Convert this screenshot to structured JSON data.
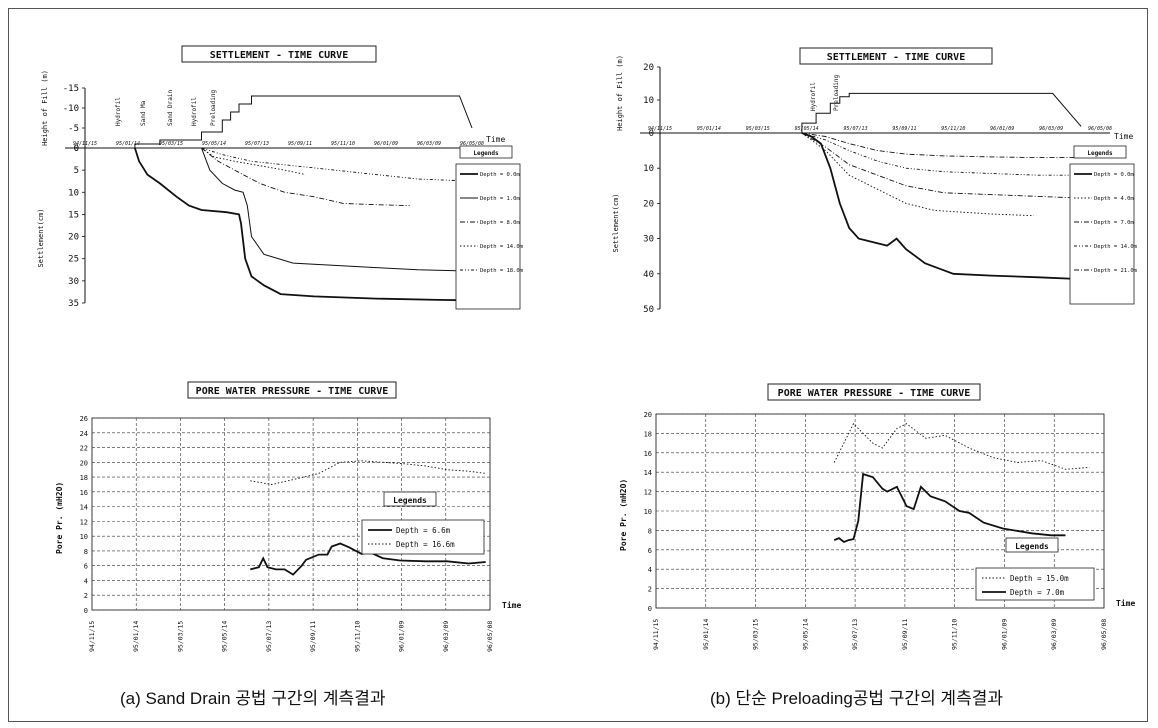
{
  "captions": {
    "a": "(a) Sand Drain 공법 구간의 계측결과",
    "b": "(b) 단순 Preloading공법 구간의 계측결과"
  },
  "chart_data": [
    {
      "id": "a-settlement",
      "type": "line",
      "title": "SETTLEMENT - TIME CURVE",
      "ylabel": "Settlement(cm)",
      "ylabel_top": "Height of Fill (m)",
      "xlabel": "Time",
      "ylim": [
        0,
        35
      ],
      "ylim_top": [
        0,
        15
      ],
      "yticks": [
        "0",
        "5",
        "10",
        "15",
        "20",
        "25",
        "30",
        "35"
      ],
      "yticks_top": [
        "-15",
        "-10",
        "-5",
        "0"
      ],
      "xticks": [
        "94/11/15",
        "95/01/14",
        "95/03/15",
        "95/05/14",
        "95/07/13",
        "95/09/11",
        "95/11/10",
        "96/01/09",
        "96/03/09",
        "96/05/08"
      ],
      "fill_events": [
        "Hydrofil",
        "Sand Ma",
        "Sand Drain",
        "Hydrofil",
        "Preloading"
      ],
      "fill_height": {
        "x": [
          1.2,
          1.2,
          1.8,
          1.8,
          2.8,
          2.8,
          3.3,
          3.3,
          3.5,
          3.5,
          3.7,
          3.7,
          4.0,
          4.0,
          9.0,
          9.3
        ],
        "values": [
          0,
          1,
          1,
          2,
          2,
          4,
          4,
          7,
          7,
          9,
          9,
          11,
          11,
          13,
          13,
          5
        ]
      },
      "legend_title": "Legends",
      "series": [
        {
          "name": "Depth = 0.0m",
          "style": "solid2",
          "x": [
            1.2,
            1.3,
            1.5,
            1.8,
            2.2,
            2.5,
            2.8,
            3.4,
            3.7,
            3.75,
            3.85,
            4.0,
            4.3,
            4.7,
            5.5,
            7.0,
            8.5,
            9.3
          ],
          "values": [
            0,
            3,
            6,
            8,
            11,
            13,
            14,
            14.5,
            15,
            17,
            25,
            29,
            31,
            33,
            33.5,
            34,
            34.3,
            34.4
          ]
        },
        {
          "name": "Depth = 1.0m",
          "style": "solid",
          "x": [
            2.8,
            3.0,
            3.3,
            3.6,
            3.8,
            3.9,
            4.0,
            4.3,
            5.0,
            6.0,
            7.0,
            8.0,
            9.3
          ],
          "values": [
            0,
            5,
            8,
            9.5,
            10,
            13,
            20,
            24,
            26,
            26.5,
            27,
            27.5,
            27.8
          ]
        },
        {
          "name": "Depth = 8.0m",
          "style": "dashdot",
          "x": [
            2.8,
            3.2,
            3.8,
            4.2,
            4.8,
            5.5,
            6.2,
            7.0,
            7.8
          ],
          "values": [
            0,
            3,
            6,
            8,
            10,
            11,
            12.5,
            12.8,
            13
          ]
        },
        {
          "name": "Depth = 14.0m",
          "style": "dotted",
          "x": [
            2.8,
            3.1,
            3.6,
            4.2,
            4.8,
            5.3
          ],
          "values": [
            0,
            2,
            3,
            4,
            5,
            6
          ]
        },
        {
          "name": "Depth = 18.0m",
          "style": "dashdot2",
          "x": [
            2.8,
            3.3,
            4.0,
            5.0,
            6.0,
            7.0,
            8.0,
            9.3
          ],
          "values": [
            0,
            1.5,
            3,
            4,
            5,
            6,
            7,
            7.5
          ]
        }
      ]
    },
    {
      "id": "b-settlement",
      "type": "line",
      "title": "SETTLEMENT - TIME CURVE",
      "ylabel": "Settlement(cm)",
      "ylabel_top": "Height of Fill (m)",
      "xlabel": "Time",
      "ylim": [
        0,
        50
      ],
      "ylim_top": [
        0,
        20
      ],
      "yticks": [
        "0",
        "10",
        "20",
        "30",
        "40",
        "50"
      ],
      "yticks_top": [
        "10",
        "20"
      ],
      "xticks": [
        "94/11/15",
        "95/01/14",
        "95/03/15",
        "95/05/14",
        "95/07/13",
        "95/09/11",
        "95/11/10",
        "96/01/09",
        "96/03/09",
        "96/05/08"
      ],
      "fill_events": [
        "Hydrofil",
        "Preloading"
      ],
      "fill_height": {
        "x": [
          3.0,
          3.0,
          3.3,
          3.3,
          3.6,
          3.6,
          3.8,
          3.8,
          4.0,
          4.0,
          8.3,
          8.9
        ],
        "values": [
          0,
          3,
          3,
          6,
          6,
          9,
          9,
          11,
          11,
          12,
          12,
          2
        ]
      },
      "legend_title": "Legends",
      "series": [
        {
          "name": "Depth = 0.0m",
          "style": "solid2",
          "x": [
            3.0,
            3.2,
            3.4,
            3.6,
            3.8,
            4.0,
            4.2,
            4.5,
            4.8,
            5.0,
            5.2,
            5.4,
            5.6,
            5.8,
            6.0,
            6.2,
            7.0,
            8.0,
            8.9
          ],
          "values": [
            0,
            1,
            3,
            10,
            20,
            27,
            30,
            31,
            32,
            30,
            33,
            35,
            37,
            38,
            39,
            40,
            40.5,
            41,
            41.5
          ]
        },
        {
          "name": "Depth = 4.0m",
          "style": "dotted",
          "x": [
            3.0,
            3.5,
            4.0,
            4.6,
            5.2,
            5.8,
            7.0,
            7.9
          ],
          "values": [
            0,
            5,
            12,
            16,
            20,
            22,
            23,
            23.5
          ]
        },
        {
          "name": "Depth = 7.0m",
          "style": "dashdot",
          "x": [
            3.0,
            3.5,
            4.0,
            4.6,
            5.2,
            6.0,
            7.0,
            8.0,
            8.9
          ],
          "values": [
            0,
            4,
            9,
            12,
            15,
            17,
            17.5,
            18,
            18.5
          ]
        },
        {
          "name": "Depth = 14.0m",
          "style": "dashdot2",
          "x": [
            3.0,
            3.5,
            4.0,
            4.6,
            5.2,
            6.0,
            7.0,
            8.0,
            8.9
          ],
          "values": [
            0,
            2,
            5,
            8,
            10,
            11,
            11.5,
            12,
            12
          ]
        },
        {
          "name": "Depth = 21.0m",
          "style": "dashdot",
          "x": [
            3.0,
            3.5,
            4.0,
            4.6,
            5.2,
            6.0,
            7.0,
            8.0,
            8.9
          ],
          "values": [
            0,
            1,
            3,
            5,
            6,
            6.5,
            6.8,
            7,
            7
          ]
        }
      ]
    },
    {
      "id": "a-pore",
      "type": "line",
      "title": "PORE WATER PRESSURE - TIME CURVE",
      "ylabel": "Pore Pr. (mH2O)",
      "xlabel": "Time",
      "ylim": [
        0,
        26
      ],
      "yticks": [
        "0",
        "2",
        "4",
        "6",
        "8",
        "10",
        "12",
        "14",
        "16",
        "18",
        "20",
        "22",
        "24",
        "26"
      ],
      "xticks": [
        "94/11/15",
        "95/01/14",
        "95/03/15",
        "95/05/14",
        "95/07/13",
        "95/09/11",
        "95/11/10",
        "96/01/09",
        "96/03/09",
        "96/05/08"
      ],
      "legend_title": "Legends",
      "series": [
        {
          "name": "Depth = 6.6m",
          "style": "solid2",
          "x": [
            3.7,
            3.9,
            4.0,
            4.1,
            4.3,
            4.5,
            4.7,
            4.9,
            5.0,
            5.3,
            5.5,
            5.6,
            5.8,
            6.0,
            6.3,
            6.5,
            6.8,
            7.2,
            7.8,
            8.3,
            8.8,
            9.2
          ],
          "values": [
            5.5,
            5.8,
            7,
            5.8,
            5.5,
            5.5,
            4.8,
            6,
            6.8,
            7.5,
            7.5,
            8.6,
            9,
            8.5,
            7.6,
            7.8,
            7,
            6.7,
            6.6,
            6.6,
            6.3,
            6.5
          ]
        },
        {
          "name": "Depth = 16.6m",
          "style": "dotted",
          "x": [
            3.7,
            4.2,
            4.8,
            5.3,
            5.8,
            6.3,
            6.8,
            7.3,
            7.8,
            8.3,
            8.8,
            9.2
          ],
          "values": [
            17.5,
            17,
            17.8,
            18.5,
            20,
            20.2,
            20,
            19.8,
            19.5,
            19,
            18.8,
            18.5
          ]
        }
      ]
    },
    {
      "id": "b-pore",
      "type": "line",
      "title": "PORE WATER PRESSURE - TIME CURVE",
      "ylabel": "Pore Pr. (mH2O)",
      "xlabel": "Time",
      "ylim": [
        0,
        20
      ],
      "yticks": [
        "0",
        "2",
        "4",
        "6",
        "8",
        "10",
        "12",
        "14",
        "16",
        "18",
        "20"
      ],
      "xticks": [
        "94/11/15",
        "95/01/14",
        "95/03/15",
        "95/05/14",
        "95/07/13",
        "95/09/11",
        "95/11/10",
        "96/01/09",
        "96/03/09",
        "96/05/08"
      ],
      "legend_title": "Legends",
      "series": [
        {
          "name": "Depth = 15.0m",
          "style": "dotted",
          "x": [
            3.7,
            3.9,
            4.1,
            4.3,
            4.5,
            4.7,
            5.0,
            5.2,
            5.6,
            6.0,
            6.5,
            7.0,
            7.5,
            8.0,
            8.5,
            9.0
          ],
          "values": [
            15,
            17,
            19,
            18,
            17,
            16.5,
            18.5,
            19,
            17.5,
            17.8,
            16.5,
            15.5,
            15,
            15.2,
            14.3,
            14.5
          ]
        },
        {
          "name": "Depth = 7.0m",
          "style": "solid2",
          "x": [
            3.7,
            3.8,
            3.9,
            4.0,
            4.1,
            4.2,
            4.3,
            4.5,
            4.7,
            4.8,
            5.0,
            5.2,
            5.35,
            5.5,
            5.6,
            5.7,
            6.0,
            6.3,
            6.5,
            6.8,
            7.2,
            7.8,
            8.2,
            8.5
          ],
          "values": [
            7,
            7.2,
            6.8,
            7,
            7.1,
            9,
            13.8,
            13.5,
            12.3,
            12,
            12.5,
            10.5,
            10.2,
            12.5,
            12,
            11.5,
            11,
            10,
            9.8,
            8.8,
            8.2,
            7.7,
            7.5,
            7.5
          ]
        }
      ]
    }
  ]
}
